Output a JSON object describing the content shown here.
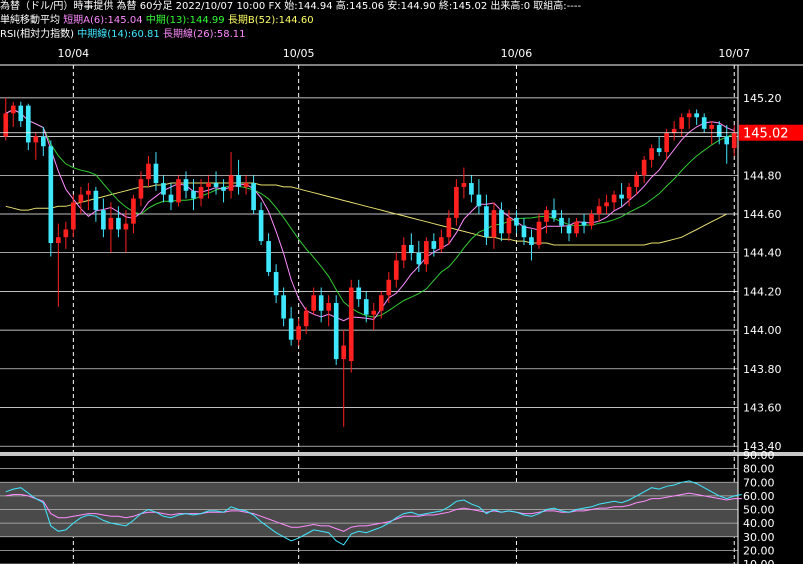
{
  "header": {
    "title_line": "為替（ドル/円）時事提供 為替 60分足 2022/10/07 10:00 FX 始:144.94 高:145.06 安:144.90 終:145.02 出来高:0 取組高:----",
    "ma_label": "単純移動平均",
    "ma_short": "短期A(6):145.04",
    "ma_mid": "中期(13):144.99",
    "ma_long": "長期B(52):144.60",
    "rsi_label": "RSI(相対力指数)",
    "rsi_mid": "中期線(14):60.81",
    "rsi_long": "長期線(26):58.11"
  },
  "colors": {
    "up": "#ff2020",
    "down": "#40e8ff",
    "ma_short": "#ff8cff",
    "ma_mid": "#33cc33",
    "ma_long": "#e8e070",
    "rsi_mid": "#40e8ff",
    "rsi_long": "#ff8cff",
    "current_price_bg": "#ff0000"
  },
  "chart_data": [
    {
      "type": "candlestick",
      "title": "為替（ドル/円）60分足",
      "date_labels": [
        "10/04",
        "10/05",
        "10/06",
        "10/07"
      ],
      "date_label_positions": [
        9,
        39,
        68,
        97
      ],
      "ylim": [
        143.37,
        145.37
      ],
      "yticks": [
        145.2,
        145.0,
        144.8,
        144.6,
        144.4,
        144.2,
        144.0,
        143.8,
        143.6,
        143.4
      ],
      "ytick_labels": [
        "145.20",
        "144.80",
        "144.60",
        "144.40",
        "144.20",
        "144.00",
        "143.80",
        "143.60",
        "143.40"
      ],
      "current_price": 145.02,
      "current_price_label": "145.02",
      "candles": [
        {
          "o": 145.0,
          "h": 145.2,
          "l": 144.98,
          "c": 145.12
        },
        {
          "o": 145.12,
          "h": 145.18,
          "l": 145.05,
          "c": 145.16
        },
        {
          "o": 145.16,
          "h": 145.18,
          "l": 145.05,
          "c": 145.08
        },
        {
          "o": 145.16,
          "h": 145.17,
          "l": 144.93,
          "c": 144.97
        },
        {
          "o": 144.97,
          "h": 145.02,
          "l": 144.88,
          "c": 145.0
        },
        {
          "o": 145.0,
          "h": 145.05,
          "l": 144.9,
          "c": 144.95
        },
        {
          "o": 144.95,
          "h": 144.98,
          "l": 144.38,
          "c": 144.45
        },
        {
          "o": 144.45,
          "h": 144.55,
          "l": 144.12,
          "c": 144.48
        },
        {
          "o": 144.48,
          "h": 144.56,
          "l": 144.42,
          "c": 144.52
        },
        {
          "o": 144.52,
          "h": 144.7,
          "l": 144.48,
          "c": 144.66
        },
        {
          "o": 144.66,
          "h": 144.74,
          "l": 144.6,
          "c": 144.7
        },
        {
          "o": 144.7,
          "h": 144.76,
          "l": 144.62,
          "c": 144.72
        },
        {
          "o": 144.72,
          "h": 144.74,
          "l": 144.56,
          "c": 144.62
        },
        {
          "o": 144.62,
          "h": 144.68,
          "l": 144.48,
          "c": 144.52
        },
        {
          "o": 144.52,
          "h": 144.66,
          "l": 144.4,
          "c": 144.58
        },
        {
          "o": 144.58,
          "h": 144.64,
          "l": 144.48,
          "c": 144.52
        },
        {
          "o": 144.52,
          "h": 144.62,
          "l": 144.4,
          "c": 144.55
        },
        {
          "o": 144.55,
          "h": 144.7,
          "l": 144.5,
          "c": 144.68
        },
        {
          "o": 144.68,
          "h": 144.82,
          "l": 144.64,
          "c": 144.78
        },
        {
          "o": 144.78,
          "h": 144.9,
          "l": 144.74,
          "c": 144.86
        },
        {
          "o": 144.86,
          "h": 144.92,
          "l": 144.72,
          "c": 144.76
        },
        {
          "o": 144.76,
          "h": 144.8,
          "l": 144.66,
          "c": 144.7
        },
        {
          "o": 144.7,
          "h": 144.76,
          "l": 144.62,
          "c": 144.66
        },
        {
          "o": 144.66,
          "h": 144.8,
          "l": 144.64,
          "c": 144.78
        },
        {
          "o": 144.78,
          "h": 144.82,
          "l": 144.68,
          "c": 144.72
        },
        {
          "o": 144.72,
          "h": 144.78,
          "l": 144.62,
          "c": 144.68
        },
        {
          "o": 144.68,
          "h": 144.78,
          "l": 144.64,
          "c": 144.74
        },
        {
          "o": 144.74,
          "h": 144.8,
          "l": 144.68,
          "c": 144.76
        },
        {
          "o": 144.76,
          "h": 144.82,
          "l": 144.7,
          "c": 144.74
        },
        {
          "o": 144.74,
          "h": 144.78,
          "l": 144.66,
          "c": 144.72
        },
        {
          "o": 144.72,
          "h": 144.92,
          "l": 144.68,
          "c": 144.8
        },
        {
          "o": 144.8,
          "h": 144.88,
          "l": 144.7,
          "c": 144.74
        },
        {
          "o": 144.74,
          "h": 144.8,
          "l": 144.7,
          "c": 144.76
        },
        {
          "o": 144.76,
          "h": 144.8,
          "l": 144.6,
          "c": 144.62
        },
        {
          "o": 144.62,
          "h": 144.66,
          "l": 144.44,
          "c": 144.46
        },
        {
          "o": 144.46,
          "h": 144.5,
          "l": 144.28,
          "c": 144.3
        },
        {
          "o": 144.3,
          "h": 144.34,
          "l": 144.14,
          "c": 144.18
        },
        {
          "o": 144.18,
          "h": 144.22,
          "l": 144.02,
          "c": 144.06
        },
        {
          "o": 144.06,
          "h": 144.12,
          "l": 143.92,
          "c": 143.95
        },
        {
          "o": 143.95,
          "h": 144.06,
          "l": 143.92,
          "c": 144.02
        },
        {
          "o": 144.02,
          "h": 144.12,
          "l": 143.98,
          "c": 144.1
        },
        {
          "o": 144.1,
          "h": 144.22,
          "l": 144.08,
          "c": 144.18
        },
        {
          "o": 144.18,
          "h": 144.22,
          "l": 144.04,
          "c": 144.1
        },
        {
          "o": 144.1,
          "h": 144.18,
          "l": 144.02,
          "c": 144.14
        },
        {
          "o": 144.14,
          "h": 144.18,
          "l": 143.82,
          "c": 143.85
        },
        {
          "o": 143.85,
          "h": 144.0,
          "l": 143.5,
          "c": 143.92
        },
        {
          "o": 143.84,
          "h": 144.26,
          "l": 143.78,
          "c": 144.22
        },
        {
          "o": 144.22,
          "h": 144.26,
          "l": 144.12,
          "c": 144.16
        },
        {
          "o": 144.16,
          "h": 144.2,
          "l": 144.04,
          "c": 144.08
        },
        {
          "o": 144.08,
          "h": 144.14,
          "l": 144.0,
          "c": 144.1
        },
        {
          "o": 144.1,
          "h": 144.2,
          "l": 144.06,
          "c": 144.18
        },
        {
          "o": 144.18,
          "h": 144.3,
          "l": 144.14,
          "c": 144.26
        },
        {
          "o": 144.26,
          "h": 144.4,
          "l": 144.22,
          "c": 144.36
        },
        {
          "o": 144.36,
          "h": 144.48,
          "l": 144.32,
          "c": 144.44
        },
        {
          "o": 144.44,
          "h": 144.5,
          "l": 144.36,
          "c": 144.4
        },
        {
          "o": 144.4,
          "h": 144.46,
          "l": 144.3,
          "c": 144.34
        },
        {
          "o": 144.34,
          "h": 144.48,
          "l": 144.3,
          "c": 144.46
        },
        {
          "o": 144.46,
          "h": 144.5,
          "l": 144.38,
          "c": 144.42
        },
        {
          "o": 144.42,
          "h": 144.52,
          "l": 144.4,
          "c": 144.48
        },
        {
          "o": 144.48,
          "h": 144.62,
          "l": 144.44,
          "c": 144.58
        },
        {
          "o": 144.58,
          "h": 144.78,
          "l": 144.54,
          "c": 144.74
        },
        {
          "o": 144.74,
          "h": 144.84,
          "l": 144.68,
          "c": 144.76
        },
        {
          "o": 144.76,
          "h": 144.8,
          "l": 144.66,
          "c": 144.7
        },
        {
          "o": 144.7,
          "h": 144.78,
          "l": 144.6,
          "c": 144.64
        },
        {
          "o": 144.64,
          "h": 144.7,
          "l": 144.44,
          "c": 144.48
        },
        {
          "o": 144.48,
          "h": 144.66,
          "l": 144.42,
          "c": 144.62
        },
        {
          "o": 144.62,
          "h": 144.66,
          "l": 144.46,
          "c": 144.5
        },
        {
          "o": 144.5,
          "h": 144.62,
          "l": 144.46,
          "c": 144.58
        },
        {
          "o": 144.58,
          "h": 144.62,
          "l": 144.5,
          "c": 144.54
        },
        {
          "o": 144.54,
          "h": 144.58,
          "l": 144.44,
          "c": 144.48
        },
        {
          "o": 144.48,
          "h": 144.52,
          "l": 144.36,
          "c": 144.44
        },
        {
          "o": 144.44,
          "h": 144.6,
          "l": 144.42,
          "c": 144.56
        },
        {
          "o": 144.56,
          "h": 144.64,
          "l": 144.5,
          "c": 144.62
        },
        {
          "o": 144.62,
          "h": 144.68,
          "l": 144.56,
          "c": 144.58
        },
        {
          "o": 144.58,
          "h": 144.62,
          "l": 144.5,
          "c": 144.54
        },
        {
          "o": 144.54,
          "h": 144.58,
          "l": 144.46,
          "c": 144.5
        },
        {
          "o": 144.5,
          "h": 144.58,
          "l": 144.48,
          "c": 144.56
        },
        {
          "o": 144.56,
          "h": 144.6,
          "l": 144.5,
          "c": 144.54
        },
        {
          "o": 144.54,
          "h": 144.62,
          "l": 144.52,
          "c": 144.6
        },
        {
          "o": 144.6,
          "h": 144.68,
          "l": 144.56,
          "c": 144.64
        },
        {
          "o": 144.64,
          "h": 144.7,
          "l": 144.6,
          "c": 144.66
        },
        {
          "o": 144.66,
          "h": 144.72,
          "l": 144.62,
          "c": 144.7
        },
        {
          "o": 144.7,
          "h": 144.76,
          "l": 144.64,
          "c": 144.68
        },
        {
          "o": 144.68,
          "h": 144.76,
          "l": 144.64,
          "c": 144.74
        },
        {
          "o": 144.74,
          "h": 144.82,
          "l": 144.7,
          "c": 144.8
        },
        {
          "o": 144.8,
          "h": 144.9,
          "l": 144.76,
          "c": 144.88
        },
        {
          "o": 144.88,
          "h": 144.96,
          "l": 144.84,
          "c": 144.94
        },
        {
          "o": 144.94,
          "h": 145.0,
          "l": 144.9,
          "c": 144.92
        },
        {
          "o": 144.92,
          "h": 145.04,
          "l": 144.88,
          "c": 145.02
        },
        {
          "o": 145.02,
          "h": 145.08,
          "l": 144.98,
          "c": 145.04
        },
        {
          "o": 145.04,
          "h": 145.12,
          "l": 145.0,
          "c": 145.1
        },
        {
          "o": 145.1,
          "h": 145.14,
          "l": 145.04,
          "c": 145.12
        },
        {
          "o": 145.12,
          "h": 145.14,
          "l": 145.06,
          "c": 145.1
        },
        {
          "o": 145.1,
          "h": 145.12,
          "l": 145.02,
          "c": 145.04
        },
        {
          "o": 145.04,
          "h": 145.08,
          "l": 144.96,
          "c": 145.06
        },
        {
          "o": 145.06,
          "h": 145.08,
          "l": 144.96,
          "c": 145.0
        },
        {
          "o": 145.0,
          "h": 145.06,
          "l": 144.86,
          "c": 144.96
        },
        {
          "o": 144.94,
          "h": 145.06,
          "l": 144.9,
          "c": 145.02
        }
      ],
      "ma_long_values": [
        144.64,
        144.63,
        144.62,
        144.62,
        144.63,
        144.63,
        144.63,
        144.64,
        144.64,
        144.65,
        144.66,
        144.67,
        144.68,
        144.69,
        144.7,
        144.71,
        144.72,
        144.73,
        144.74,
        144.74,
        144.75,
        144.75,
        144.76,
        144.76,
        144.76,
        144.76,
        144.76,
        144.76,
        144.76,
        144.76,
        144.76,
        144.76,
        144.76,
        144.76,
        144.75,
        144.75,
        144.75,
        144.74,
        144.74,
        144.73,
        144.72,
        144.71,
        144.7,
        144.69,
        144.68,
        144.67,
        144.66,
        144.65,
        144.64,
        144.63,
        144.62,
        144.61,
        144.6,
        144.59,
        144.58,
        144.57,
        144.56,
        144.55,
        144.54,
        144.53,
        144.52,
        144.51,
        144.5,
        144.49,
        144.48,
        144.48,
        144.47,
        144.47,
        144.46,
        144.46,
        144.45,
        144.45,
        144.45,
        144.44,
        144.44,
        144.44,
        144.44,
        144.44,
        144.44,
        144.44,
        144.44,
        144.44,
        144.44,
        144.44,
        144.44,
        144.44,
        144.45,
        144.45,
        144.46,
        144.47,
        144.48,
        144.5,
        144.52,
        144.54,
        144.56,
        144.58,
        144.6
      ]
    },
    {
      "type": "line",
      "title": "RSI",
      "ylim": [
        10,
        90
      ],
      "yticks": [
        90,
        80,
        70,
        60,
        50,
        40,
        30,
        20,
        10
      ],
      "ytick_labels": [
        "90.00",
        "80.00",
        "70.00",
        "60.00",
        "50.00",
        "40.00",
        "30.00",
        "20.00",
        "10.00"
      ],
      "band": [
        30,
        70
      ],
      "series": [
        {
          "name": "中期線(14)",
          "values": [
            63,
            65,
            66,
            62,
            58,
            55,
            38,
            34,
            35,
            40,
            44,
            46,
            45,
            42,
            40,
            39,
            38,
            42,
            47,
            50,
            48,
            45,
            44,
            46,
            47,
            46,
            47,
            49,
            49,
            48,
            52,
            50,
            49,
            46,
            41,
            37,
            33,
            30,
            27,
            29,
            32,
            35,
            34,
            33,
            27,
            24,
            32,
            34,
            33,
            35,
            37,
            40,
            44,
            47,
            48,
            46,
            47,
            48,
            49,
            52,
            56,
            57,
            54,
            52,
            47,
            50,
            48,
            49,
            48,
            46,
            45,
            47,
            50,
            51,
            49,
            48,
            50,
            51,
            52,
            54,
            55,
            56,
            55,
            57,
            60,
            63,
            66,
            65,
            67,
            68,
            70,
            71,
            69,
            66,
            63,
            60,
            58,
            60,
            61
          ]
        },
        {
          "name": "長期線(26)",
          "values": [
            60,
            61,
            61,
            60,
            58,
            56,
            47,
            44,
            44,
            45,
            46,
            47,
            47,
            46,
            45,
            45,
            44,
            45,
            47,
            48,
            48,
            47,
            46,
            47,
            47,
            47,
            47,
            48,
            48,
            48,
            49,
            49,
            48,
            47,
            45,
            43,
            41,
            39,
            37,
            37,
            38,
            39,
            38,
            38,
            36,
            34,
            37,
            38,
            38,
            39,
            40,
            41,
            43,
            45,
            45,
            45,
            46,
            46,
            47,
            48,
            50,
            51,
            50,
            49,
            48,
            49,
            48,
            49,
            48,
            47,
            47,
            48,
            49,
            49,
            48,
            48,
            49,
            49,
            50,
            51,
            51,
            52,
            52,
            53,
            55,
            56,
            58,
            58,
            59,
            60,
            61,
            62,
            61,
            60,
            59,
            58,
            57,
            58,
            58
          ]
        }
      ]
    }
  ]
}
